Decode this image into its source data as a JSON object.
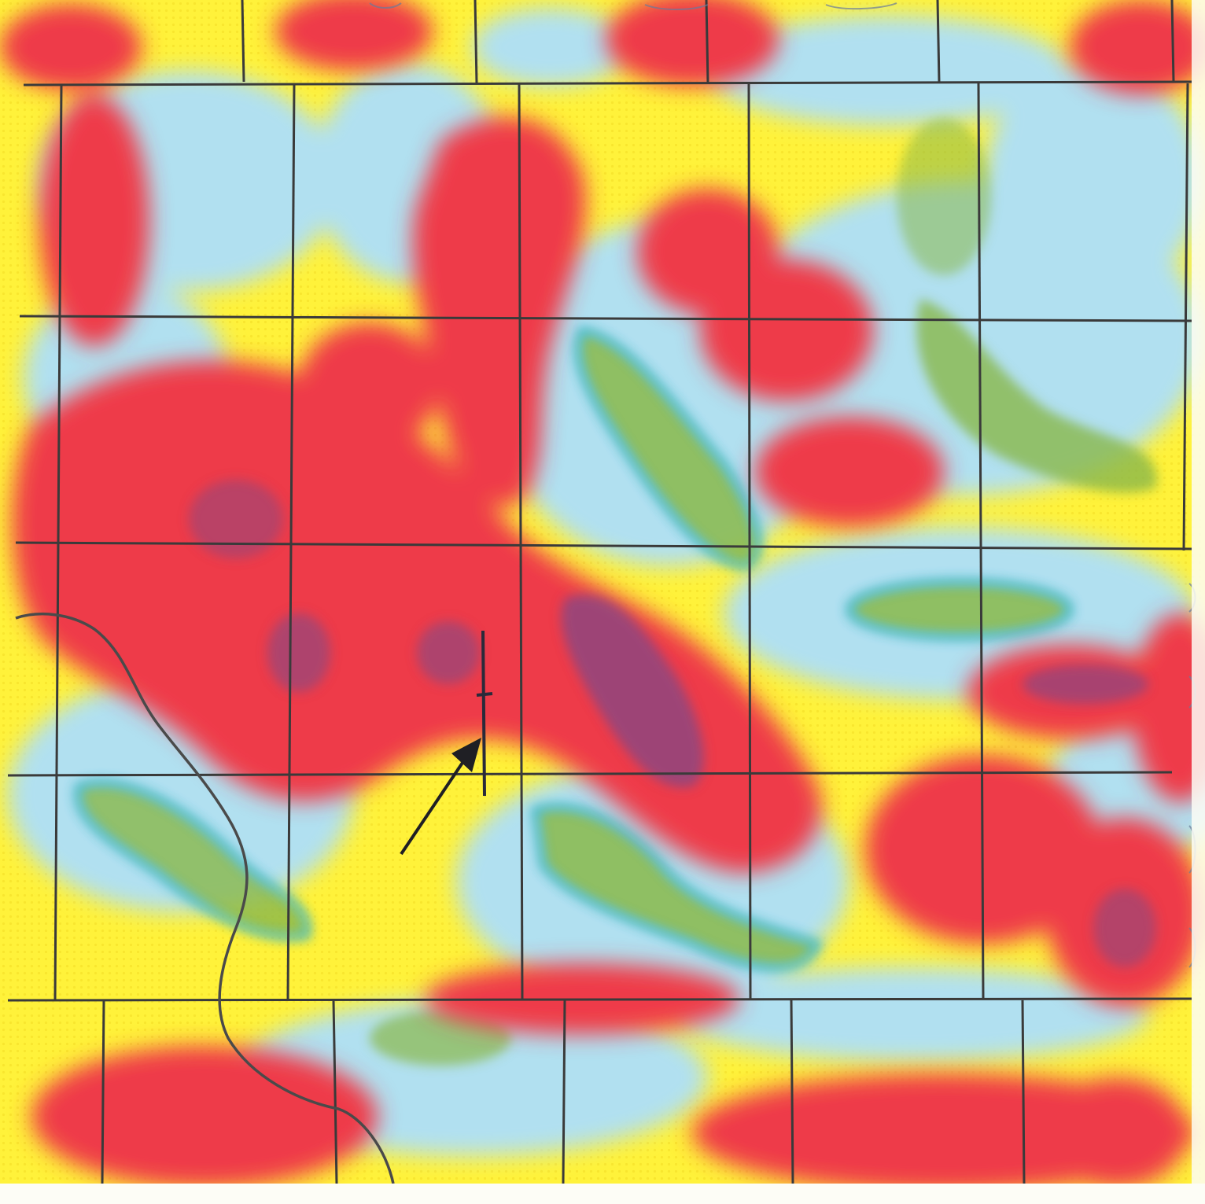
{
  "map": {
    "type": "contour-anomaly-map",
    "palette": {
      "background": "#fdfdf6",
      "yellow": "#fff23a",
      "red": "#ee2a4a",
      "magenta": "#d81f5a",
      "purple": "#7a4a8a",
      "cyan": "#2fb8e6",
      "light_cyan": "#bfe6f2",
      "green": "#8ab84a",
      "grid_line": "#3a3a3a",
      "stream_line": "#4a4a4a",
      "well_marker": "#2a2a3a"
    },
    "layers": {
      "grid": "section-grid",
      "stream": "drainage-line",
      "well": "well-location-marker",
      "arrow": "pointer-arrow"
    }
  }
}
